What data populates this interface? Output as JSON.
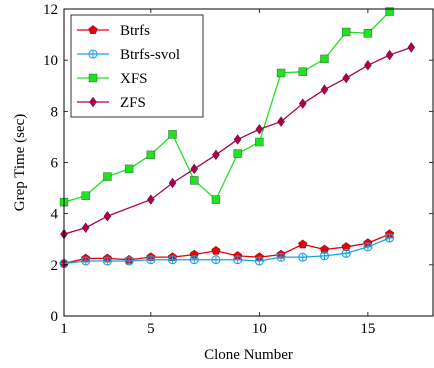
{
  "chart_data": {
    "type": "line",
    "xlabel": "Clone Number",
    "ylabel": "Grep Time (sec)",
    "xlim": [
      1,
      18
    ],
    "ylim": [
      0,
      12
    ],
    "xticks": [
      1,
      5,
      10,
      15
    ],
    "yticks": [
      0,
      2,
      4,
      6,
      8,
      10,
      12
    ],
    "grid": false,
    "legend_position": "top-left",
    "series": [
      {
        "name": "Btrfs",
        "color": "#e8000b",
        "marker": "pentagon",
        "x": [
          1,
          2,
          3,
          4,
          5,
          6,
          7,
          8,
          9,
          10,
          11,
          12,
          13,
          14,
          15,
          16
        ],
        "y": [
          2.05,
          2.25,
          2.25,
          2.2,
          2.3,
          2.3,
          2.4,
          2.55,
          2.35,
          2.3,
          2.4,
          2.8,
          2.6,
          2.7,
          2.85,
          3.2
        ]
      },
      {
        "name": "Btrfs-svol",
        "color": "#1ba1e2",
        "marker": "circle-plus",
        "x": [
          1,
          2,
          3,
          4,
          5,
          6,
          7,
          8,
          9,
          10,
          11,
          12,
          13,
          14,
          15,
          16
        ],
        "y": [
          2.05,
          2.15,
          2.15,
          2.15,
          2.2,
          2.2,
          2.2,
          2.2,
          2.2,
          2.15,
          2.3,
          2.3,
          2.35,
          2.45,
          2.7,
          3.05
        ]
      },
      {
        "name": "XFS",
        "color": "#22e022",
        "marker": "square",
        "x": [
          1,
          2,
          3,
          4,
          5,
          6,
          7,
          8,
          9,
          10,
          11,
          12,
          13,
          14,
          15,
          16
        ],
        "y": [
          4.45,
          4.7,
          5.45,
          5.75,
          6.3,
          7.1,
          5.3,
          4.55,
          6.35,
          6.8,
          9.5,
          9.55,
          10.05,
          11.1,
          11.05,
          11.9
        ]
      },
      {
        "name": "ZFS",
        "color": "#b0004c",
        "marker": "diamond",
        "x": [
          1,
          2,
          3,
          5,
          6,
          7,
          8,
          9,
          10,
          11,
          12,
          13,
          14,
          15,
          16,
          17
        ],
        "y": [
          3.2,
          3.45,
          3.9,
          4.55,
          5.2,
          5.75,
          6.3,
          6.9,
          7.3,
          7.6,
          8.3,
          8.85,
          9.3,
          9.8,
          10.2,
          10.5
        ]
      }
    ]
  }
}
